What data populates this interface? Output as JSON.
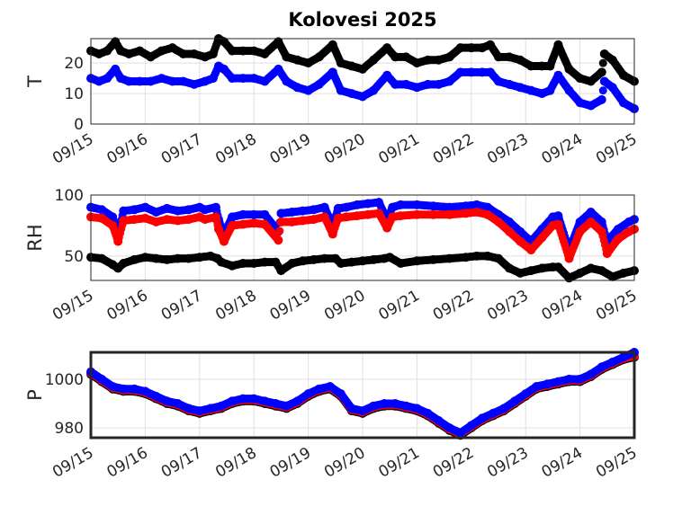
{
  "chart_data": {
    "title": "Kolovesi 2025",
    "x_ticks": [
      "09/15",
      "09/16",
      "09/17",
      "09/18",
      "09/19",
      "09/20",
      "09/21",
      "09/22",
      "09/23",
      "09/24",
      "09/25"
    ],
    "x_range": [
      "09/15",
      "09/25"
    ],
    "colors": {
      "black": "#000000",
      "blue": "#0000ff",
      "red": "#ff0000"
    },
    "panels": [
      {
        "id": "T",
        "type": "scatter",
        "ylabel": "T",
        "ylim": [
          0,
          28
        ],
        "yticks": [
          "0",
          "10",
          "20"
        ],
        "ytick_values": [
          0,
          10,
          20
        ],
        "grid": true,
        "series": [
          {
            "color": "black",
            "x": [
              0,
              0.15,
              0.3,
              0.45,
              0.55,
              0.7,
              0.9,
              1.1,
              1.3,
              1.5,
              1.7,
              1.9,
              2.1,
              2.25,
              2.35,
              2.45,
              2.6,
              2.8,
              3.0,
              3.2,
              3.45,
              3.6,
              3.8,
              4.0,
              4.2,
              4.45,
              4.6,
              4.8,
              5.0,
              5.2,
              5.45,
              5.6,
              5.8,
              6.0,
              6.2,
              6.4,
              6.6,
              6.8,
              7.0,
              7.2,
              7.35,
              7.5,
              7.7,
              7.9,
              8.1,
              8.3,
              8.45,
              8.6,
              8.8,
              9.0,
              9.2,
              9.4,
              9.45,
              9.6,
              9.8,
              10.0
            ],
            "y": [
              24,
              23,
              24,
              27,
              24,
              23,
              24,
              22,
              24,
              25,
              23,
              23,
              22,
              23,
              28,
              27,
              24,
              24,
              24,
              23,
              27,
              22,
              21,
              20,
              22,
              26,
              20,
              19,
              18,
              21,
              25,
              22,
              22,
              20,
              21,
              21,
              22,
              25,
              25,
              25,
              26,
              22,
              22,
              21,
              19,
              19,
              19,
              26,
              18,
              15,
              14,
              17,
              23,
              21,
              16,
              14
            ]
          },
          {
            "color": "blue",
            "x": [
              0,
              0.15,
              0.3,
              0.45,
              0.55,
              0.7,
              0.9,
              1.1,
              1.3,
              1.5,
              1.7,
              1.9,
              2.1,
              2.25,
              2.35,
              2.45,
              2.6,
              2.8,
              3.0,
              3.2,
              3.45,
              3.6,
              3.8,
              4.0,
              4.2,
              4.45,
              4.6,
              4.8,
              5.0,
              5.2,
              5.45,
              5.6,
              5.8,
              6.0,
              6.2,
              6.4,
              6.6,
              6.8,
              7.0,
              7.2,
              7.35,
              7.5,
              7.7,
              7.9,
              8.1,
              8.3,
              8.45,
              8.6,
              8.8,
              9.0,
              9.2,
              9.4,
              9.45,
              9.6,
              9.8,
              10.0
            ],
            "y": [
              15,
              14,
              15,
              18,
              15,
              14,
              14,
              14,
              15,
              14,
              14,
              13,
              14,
              15,
              19,
              18,
              15,
              15,
              15,
              14,
              18,
              14,
              12,
              11,
              13,
              17,
              11,
              10,
              9,
              11,
              16,
              13,
              13,
              12,
              13,
              13,
              14,
              17,
              17,
              17,
              17,
              14,
              13,
              12,
              11,
              10,
              11,
              16,
              11,
              7,
              6,
              8,
              14,
              12,
              7,
              5
            ]
          }
        ]
      },
      {
        "id": "RH",
        "type": "scatter",
        "ylabel": "RH",
        "ylim": [
          30,
          100
        ],
        "yticks": [
          "50",
          "100"
        ],
        "ytick_values": [
          50,
          100
        ],
        "grid": true,
        "series": [
          {
            "color": "blue",
            "x": [
              0,
              0.2,
              0.4,
              0.5,
              0.6,
              0.8,
              1.0,
              1.2,
              1.4,
              1.6,
              1.8,
              2.0,
              2.1,
              2.3,
              2.35,
              2.45,
              2.6,
              2.8,
              3.0,
              3.2,
              3.45,
              3.5,
              3.7,
              3.9,
              4.1,
              4.3,
              4.45,
              4.55,
              4.7,
              4.9,
              5.1,
              5.3,
              5.45,
              5.55,
              5.7,
              6.0,
              6.3,
              6.6,
              6.9,
              7.1,
              7.3,
              7.5,
              7.7,
              7.9,
              8.1,
              8.3,
              8.5,
              8.6,
              8.8,
              9.0,
              9.2,
              9.4,
              9.5,
              9.7,
              9.9,
              10.0
            ],
            "y": [
              90,
              88,
              82,
              68,
              87,
              88,
              90,
              86,
              89,
              87,
              88,
              90,
              88,
              90,
              80,
              68,
              82,
              84,
              84,
              84,
              70,
              85,
              86,
              87,
              88,
              90,
              75,
              89,
              90,
              92,
              93,
              94,
              80,
              90,
              92,
              92,
              91,
              90,
              91,
              92,
              90,
              84,
              78,
              70,
              62,
              72,
              82,
              83,
              55,
              78,
              86,
              78,
              62,
              72,
              78,
              80
            ]
          },
          {
            "color": "red",
            "x": [
              0,
              0.2,
              0.4,
              0.5,
              0.6,
              0.8,
              1.0,
              1.2,
              1.4,
              1.6,
              1.8,
              2.0,
              2.1,
              2.3,
              2.35,
              2.45,
              2.6,
              2.8,
              3.0,
              3.2,
              3.45,
              3.5,
              3.7,
              3.9,
              4.1,
              4.3,
              4.45,
              4.55,
              4.7,
              4.9,
              5.1,
              5.3,
              5.45,
              5.55,
              5.7,
              6.0,
              6.3,
              6.6,
              6.9,
              7.1,
              7.3,
              7.5,
              7.7,
              7.9,
              8.1,
              8.3,
              8.5,
              8.6,
              8.8,
              9.0,
              9.2,
              9.4,
              9.5,
              9.7,
              9.9,
              10.0
            ],
            "y": [
              82,
              81,
              75,
              62,
              79,
              80,
              81,
              78,
              80,
              79,
              80,
              82,
              80,
              82,
              72,
              62,
              75,
              76,
              77,
              76,
              63,
              78,
              78,
              79,
              80,
              82,
              68,
              81,
              82,
              83,
              84,
              85,
              73,
              82,
              83,
              84,
              84,
              84,
              85,
              86,
              84,
              78,
              70,
              62,
              55,
              65,
              75,
              76,
              48,
              70,
              78,
              70,
              52,
              64,
              70,
              72
            ]
          },
          {
            "color": "black",
            "x": [
              0,
              0.2,
              0.4,
              0.5,
              0.6,
              0.8,
              1.0,
              1.2,
              1.4,
              1.6,
              1.8,
              2.0,
              2.2,
              2.33,
              2.4,
              2.6,
              2.8,
              3.0,
              3.2,
              3.4,
              3.5,
              3.7,
              3.9,
              4.1,
              4.3,
              4.5,
              4.6,
              4.8,
              5.0,
              5.2,
              5.4,
              5.5,
              5.7,
              6.0,
              6.3,
              6.6,
              6.9,
              7.1,
              7.3,
              7.5,
              7.7,
              7.9,
              8.1,
              8.3,
              8.5,
              8.6,
              8.8,
              9.0,
              9.2,
              9.4,
              9.6,
              9.8,
              10.0
            ],
            "y": [
              49,
              48,
              43,
              40,
              44,
              47,
              49,
              48,
              47,
              48,
              48,
              49,
              50,
              48,
              45,
              42,
              44,
              44,
              45,
              45,
              38,
              44,
              46,
              47,
              48,
              48,
              44,
              45,
              46,
              47,
              48,
              49,
              44,
              46,
              47,
              48,
              49,
              50,
              50,
              48,
              40,
              36,
              38,
              40,
              41,
              41,
              32,
              36,
              40,
              38,
              33,
              36,
              38
            ]
          }
        ]
      },
      {
        "id": "P",
        "type": "scatter",
        "ylabel": "P",
        "ylim": [
          976,
          1011
        ],
        "yticks": [
          "980",
          "1000"
        ],
        "ytick_values": [
          980,
          1000
        ],
        "grid": true,
        "series": [
          {
            "color": "black",
            "x": [
              0,
              0.2,
              0.4,
              0.6,
              0.8,
              1.0,
              1.2,
              1.4,
              1.6,
              1.8,
              2.0,
              2.2,
              2.4,
              2.6,
              2.8,
              3.0,
              3.2,
              3.4,
              3.6,
              3.8,
              4.0,
              4.2,
              4.4,
              4.6,
              4.8,
              5.0,
              5.2,
              5.4,
              5.6,
              5.8,
              6.0,
              6.2,
              6.4,
              6.6,
              6.8,
              7.0,
              7.2,
              7.4,
              7.6,
              7.8,
              8.0,
              8.2,
              8.4,
              8.6,
              8.8,
              9.0,
              9.2,
              9.4,
              9.6,
              9.8,
              10.0
            ],
            "y": [
              1002,
              999,
              996,
              995,
              995,
              994,
              992,
              990,
              989,
              987,
              986,
              987,
              988,
              990,
              991,
              991,
              990,
              989,
              988,
              990,
              993,
              995,
              996,
              993,
              987,
              986,
              988,
              989,
              989,
              988,
              987,
              985,
              982,
              979,
              977,
              980,
              983,
              985,
              987,
              990,
              993,
              996,
              997,
              998,
              999,
              999,
              1001,
              1004,
              1006,
              1008,
              1009
            ]
          },
          {
            "color": "red",
            "x": [
              0,
              0.2,
              0.4,
              0.6,
              0.8,
              1.0,
              1.2,
              1.4,
              1.6,
              1.8,
              2.0,
              2.2,
              2.4,
              2.6,
              2.8,
              3.0,
              3.2,
              3.4,
              3.6,
              3.8,
              4.0,
              4.2,
              4.4,
              4.6,
              4.8,
              5.0,
              5.2,
              5.4,
              5.6,
              5.8,
              6.0,
              6.2,
              6.4,
              6.6,
              6.8,
              7.0,
              7.2,
              7.4,
              7.6,
              7.8,
              8.0,
              8.2,
              8.4,
              8.6,
              8.8,
              9.0,
              9.2,
              9.4,
              9.6,
              9.8,
              10.0
            ],
            "y": [
              1002.5,
              999.5,
              996.5,
              995.5,
              995.5,
              994.5,
              992.5,
              990.5,
              989.5,
              987.5,
              986.5,
              987.5,
              988.5,
              990.5,
              991.5,
              991.5,
              990.5,
              989.5,
              988.5,
              990.5,
              993.5,
              995.5,
              996.5,
              993.5,
              987.5,
              986.5,
              988.5,
              989.5,
              989.5,
              988.5,
              987.5,
              985.5,
              982.5,
              979.5,
              977.5,
              980.5,
              983.5,
              985.5,
              987.5,
              990.5,
              993.5,
              996.5,
              997.5,
              998.5,
              999.5,
              999.5,
              1001.5,
              1004.5,
              1006.5,
              1008.5,
              1009.5
            ]
          },
          {
            "color": "blue",
            "x": [
              0,
              0.2,
              0.4,
              0.6,
              0.8,
              1.0,
              1.2,
              1.4,
              1.6,
              1.8,
              2.0,
              2.2,
              2.4,
              2.6,
              2.8,
              3.0,
              3.2,
              3.4,
              3.6,
              3.8,
              4.0,
              4.2,
              4.4,
              4.6,
              4.8,
              5.0,
              5.2,
              5.4,
              5.6,
              5.8,
              6.0,
              6.2,
              6.4,
              6.6,
              6.8,
              7.0,
              7.2,
              7.4,
              7.6,
              7.8,
              8.0,
              8.2,
              8.4,
              8.6,
              8.8,
              9.0,
              9.2,
              9.4,
              9.6,
              9.8,
              10.0
            ],
            "y": [
              1003,
              1000,
              997,
              996,
              996,
              995,
              993,
              991,
              990,
              988,
              987,
              988,
              989,
              991,
              992,
              992,
              991,
              990,
              989,
              991,
              994,
              996,
              997,
              994,
              988,
              987,
              989,
              990,
              990,
              989,
              988,
              986,
              983,
              980,
              978,
              981,
              984,
              986,
              988,
              991,
              994,
              997,
              998,
              999,
              1000,
              1000,
              1002,
              1005,
              1007,
              1009,
              1011
            ]
          }
        ]
      }
    ]
  }
}
